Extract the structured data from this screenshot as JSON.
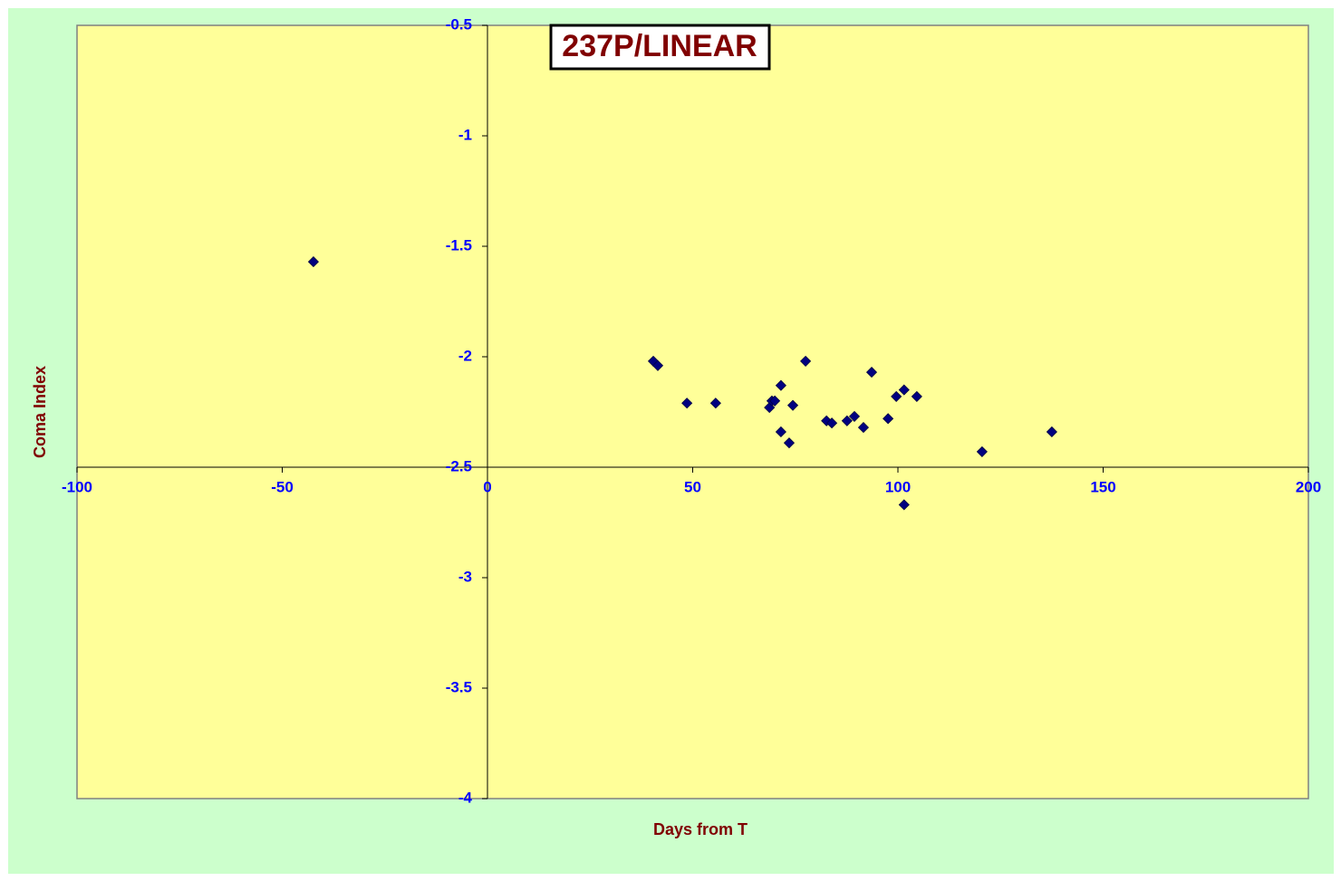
{
  "chart_data": {
    "type": "scatter",
    "title": "237P/LINEAR",
    "x_label": "Days from T",
    "y_label": "Coma Index",
    "series": [
      {
        "name": "Coma Index",
        "color": "#000080",
        "x": [
          -42.4,
          40.4,
          41.5,
          48.6,
          55.6,
          68.7,
          69.3,
          70,
          71.5,
          71.5,
          73.5,
          74.4,
          77.5,
          82.6,
          83.9,
          87.6,
          89.4,
          91.6,
          93.6,
          97.6,
          99.6,
          101.5,
          101.5,
          104.6,
          120.5,
          137.5
        ],
        "values": [
          -1.57,
          -2.02,
          -2.04,
          -2.21,
          -2.21,
          -2.23,
          -2.2,
          -2.2,
          -2.13,
          -2.34,
          -2.39,
          -2.22,
          -2.02,
          -2.29,
          -2.3,
          -2.29,
          -2.27,
          -2.32,
          -2.07,
          -2.28,
          -2.18,
          -2.15,
          -2.67,
          -2.18,
          -2.43,
          -2.34
        ]
      }
    ],
    "xlim": [
      -100,
      200
    ],
    "xticks": [
      -100,
      -50,
      0,
      50,
      100,
      150,
      200
    ],
    "ylim": [
      -4,
      -0.5
    ],
    "yticks": [
      -0.5,
      -1,
      -1.5,
      -2,
      -2.5,
      -3,
      -3.5,
      -4
    ],
    "grid": false
  }
}
